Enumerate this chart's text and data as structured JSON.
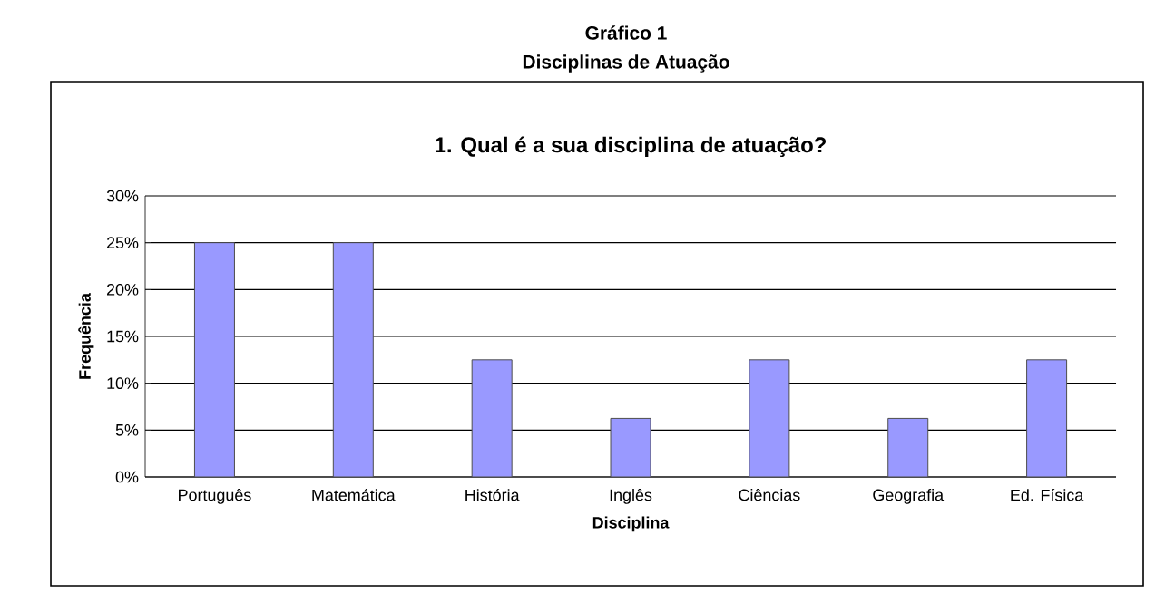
{
  "chart_data": {
    "type": "bar",
    "title": "1. Qual é a sua disciplina de atuação?",
    "annotations": [
      "Gráfico 1",
      "Disciplinas de Atuação"
    ],
    "xlabel": "Disciplina",
    "ylabel": "Frequência",
    "categories": [
      "Português",
      "Matemática",
      "História",
      "Inglês",
      "Ciências",
      "Geografia",
      "Ed. Física"
    ],
    "values": [
      25,
      25,
      12.5,
      6.25,
      12.5,
      6.25,
      12.5
    ],
    "color": "#9999ff",
    "ylim": [
      0,
      30
    ],
    "yticks": [
      {
        "value": 0,
        "label": "0%"
      },
      {
        "value": 5,
        "label": "5%"
      },
      {
        "value": 10,
        "label": "10%"
      },
      {
        "value": 15,
        "label": "15%"
      },
      {
        "value": 20,
        "label": "20%"
      },
      {
        "value": 25,
        "label": "25%"
      },
      {
        "value": 30,
        "label": "30%"
      }
    ],
    "grid": "y"
  }
}
